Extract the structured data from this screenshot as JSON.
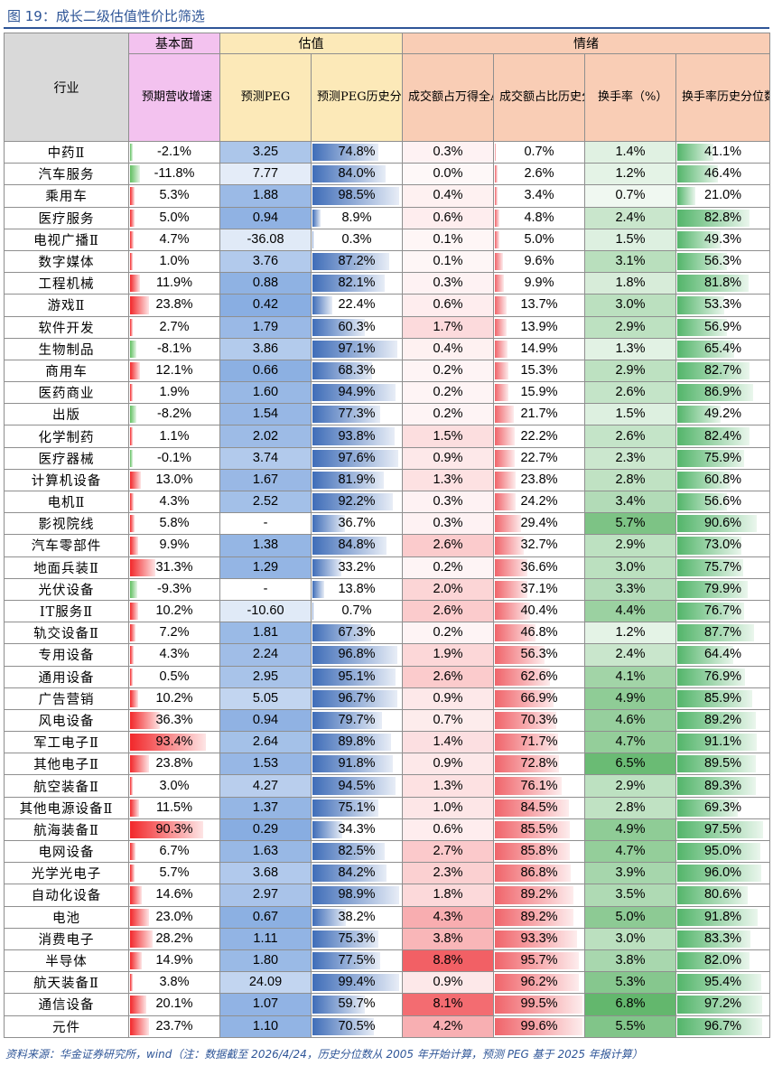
{
  "title": "图 19：成长二级估值性价比筛选",
  "header": {
    "groups": [
      "行业",
      "基本面",
      "估值",
      "情绪"
    ],
    "columns": [
      "预期营收增速（%）",
      "预测PEG",
      "预测PEG历史分位数（%）",
      "成交额占万得全A比（%）",
      "成交额占比历史分位数（%）",
      "换手率（%）",
      "换手率历史分位数（%）"
    ]
  },
  "rows": [
    [
      "中药Ⅱ",
      "-2.1%",
      "3.25",
      "74.8%",
      "0.3%",
      "0.7%",
      "1.4%",
      "41.1%"
    ],
    [
      "汽车服务",
      "-11.8%",
      "7.77",
      "84.0%",
      "0.0%",
      "2.6%",
      "1.2%",
      "46.4%"
    ],
    [
      "乘用车",
      "5.3%",
      "1.88",
      "98.5%",
      "0.4%",
      "3.4%",
      "0.7%",
      "21.0%"
    ],
    [
      "医疗服务",
      "5.0%",
      "0.94",
      "8.9%",
      "0.6%",
      "4.8%",
      "2.4%",
      "82.8%"
    ],
    [
      "电视广播Ⅱ",
      "4.7%",
      "-36.08",
      "0.3%",
      "0.1%",
      "5.0%",
      "1.5%",
      "49.3%"
    ],
    [
      "数字媒体",
      "1.0%",
      "3.76",
      "87.2%",
      "0.1%",
      "9.6%",
      "3.1%",
      "56.3%"
    ],
    [
      "工程机械",
      "11.9%",
      "0.88",
      "82.1%",
      "0.3%",
      "9.9%",
      "1.8%",
      "81.8%"
    ],
    [
      "游戏Ⅱ",
      "23.8%",
      "0.42",
      "22.4%",
      "0.6%",
      "13.7%",
      "3.0%",
      "53.3%"
    ],
    [
      "软件开发",
      "2.7%",
      "1.79",
      "60.3%",
      "1.7%",
      "13.9%",
      "2.9%",
      "56.9%"
    ],
    [
      "生物制品",
      "-8.1%",
      "3.86",
      "97.1%",
      "0.4%",
      "14.9%",
      "1.3%",
      "65.4%"
    ],
    [
      "商用车",
      "12.1%",
      "0.66",
      "68.3%",
      "0.2%",
      "15.3%",
      "2.9%",
      "82.7%"
    ],
    [
      "医药商业",
      "1.9%",
      "1.60",
      "94.9%",
      "0.2%",
      "15.9%",
      "2.6%",
      "86.9%"
    ],
    [
      "出版",
      "-8.2%",
      "1.54",
      "77.3%",
      "0.2%",
      "21.7%",
      "1.5%",
      "49.2%"
    ],
    [
      "化学制药",
      "1.1%",
      "2.02",
      "93.8%",
      "1.5%",
      "22.2%",
      "2.6%",
      "82.4%"
    ],
    [
      "医疗器械",
      "-0.1%",
      "3.74",
      "97.6%",
      "0.9%",
      "22.7%",
      "2.3%",
      "75.9%"
    ],
    [
      "计算机设备",
      "13.0%",
      "1.67",
      "81.9%",
      "1.3%",
      "23.8%",
      "2.8%",
      "60.8%"
    ],
    [
      "电机Ⅱ",
      "4.3%",
      "2.52",
      "92.2%",
      "0.3%",
      "24.2%",
      "3.4%",
      "56.6%"
    ],
    [
      "影视院线",
      "5.8%",
      "-",
      "36.7%",
      "0.3%",
      "29.4%",
      "5.7%",
      "90.6%"
    ],
    [
      "汽车零部件",
      "9.9%",
      "1.38",
      "84.8%",
      "2.6%",
      "32.7%",
      "2.9%",
      "73.0%"
    ],
    [
      "地面兵装Ⅱ",
      "31.3%",
      "1.29",
      "33.2%",
      "0.2%",
      "36.6%",
      "3.0%",
      "75.7%"
    ],
    [
      "光伏设备",
      "-9.3%",
      "-",
      "13.8%",
      "2.0%",
      "37.1%",
      "3.3%",
      "79.9%"
    ],
    [
      "IT服务Ⅱ",
      "10.2%",
      "-10.60",
      "0.7%",
      "2.6%",
      "40.4%",
      "4.4%",
      "76.7%"
    ],
    [
      "轨交设备Ⅱ",
      "7.2%",
      "1.81",
      "67.3%",
      "0.2%",
      "46.8%",
      "1.2%",
      "87.7%"
    ],
    [
      "专用设备",
      "4.3%",
      "2.24",
      "96.8%",
      "1.9%",
      "56.3%",
      "2.4%",
      "64.4%"
    ],
    [
      "通用设备",
      "0.5%",
      "2.95",
      "95.1%",
      "2.6%",
      "62.6%",
      "4.1%",
      "76.9%"
    ],
    [
      "广告营销",
      "10.2%",
      "5.05",
      "96.7%",
      "0.9%",
      "66.9%",
      "4.9%",
      "85.9%"
    ],
    [
      "风电设备",
      "36.3%",
      "0.94",
      "79.7%",
      "0.7%",
      "70.3%",
      "4.6%",
      "89.2%"
    ],
    [
      "军工电子Ⅱ",
      "93.4%",
      "2.64",
      "89.8%",
      "1.4%",
      "71.7%",
      "4.7%",
      "91.1%"
    ],
    [
      "其他电子Ⅱ",
      "23.8%",
      "1.53",
      "91.8%",
      "0.9%",
      "72.8%",
      "6.5%",
      "89.5%"
    ],
    [
      "航空装备Ⅱ",
      "3.0%",
      "4.27",
      "94.5%",
      "1.3%",
      "76.1%",
      "2.9%",
      "89.3%"
    ],
    [
      "其他电源设备Ⅱ",
      "11.5%",
      "1.37",
      "75.1%",
      "1.0%",
      "84.5%",
      "2.8%",
      "69.3%"
    ],
    [
      "航海装备Ⅱ",
      "90.3%",
      "0.29",
      "34.3%",
      "0.6%",
      "85.5%",
      "4.9%",
      "97.5%"
    ],
    [
      "电网设备",
      "6.7%",
      "1.63",
      "82.5%",
      "2.7%",
      "85.8%",
      "4.7%",
      "95.0%"
    ],
    [
      "光学光电子",
      "5.7%",
      "3.68",
      "84.2%",
      "2.3%",
      "86.8%",
      "3.9%",
      "96.0%"
    ],
    [
      "自动化设备",
      "14.6%",
      "2.97",
      "98.9%",
      "1.8%",
      "89.2%",
      "3.5%",
      "80.6%"
    ],
    [
      "电池",
      "23.0%",
      "0.67",
      "38.2%",
      "4.3%",
      "89.2%",
      "5.0%",
      "91.8%"
    ],
    [
      "消费电子",
      "28.2%",
      "1.11",
      "75.3%",
      "3.8%",
      "93.3%",
      "3.0%",
      "83.3%"
    ],
    [
      "半导体",
      "14.9%",
      "1.80",
      "77.5%",
      "8.8%",
      "95.7%",
      "3.8%",
      "82.0%"
    ],
    [
      "航天装备Ⅱ",
      "3.8%",
      "24.09",
      "99.4%",
      "0.9%",
      "96.2%",
      "5.3%",
      "95.4%"
    ],
    [
      "通信设备",
      "20.1%",
      "1.07",
      "59.7%",
      "8.1%",
      "99.5%",
      "6.8%",
      "97.2%"
    ],
    [
      "元件",
      "23.7%",
      "1.10",
      "70.5%",
      "4.2%",
      "99.6%",
      "5.5%",
      "96.7%"
    ]
  ],
  "source": "资料来源：华金证券研究所，wind（注：数据截至 2026/4/24，历史分位数从 2005 年开始计算，预测 PEG 基于 2025 年报计算）",
  "colors": {
    "title": "#2E5597",
    "header_industry": "#D9D9D9",
    "header_fundamental": "#F3C2EF",
    "header_valuation": "#FCE9B8",
    "header_sentiment": "#F9CDB5",
    "bar_positive": "#F2272A",
    "bar_negative": "#5FBE5F",
    "bar_percentile": "#3F6DB8",
    "scale_peg_low": "#FFFFFF",
    "scale_peg_high": "#5B8ED6",
    "scale_amount_low": "#FFFFFF",
    "scale_amount_high": "#F0484E",
    "scale_turnover_low": "#FFFFFF",
    "scale_turnover_high": "#4FAE5A"
  }
}
